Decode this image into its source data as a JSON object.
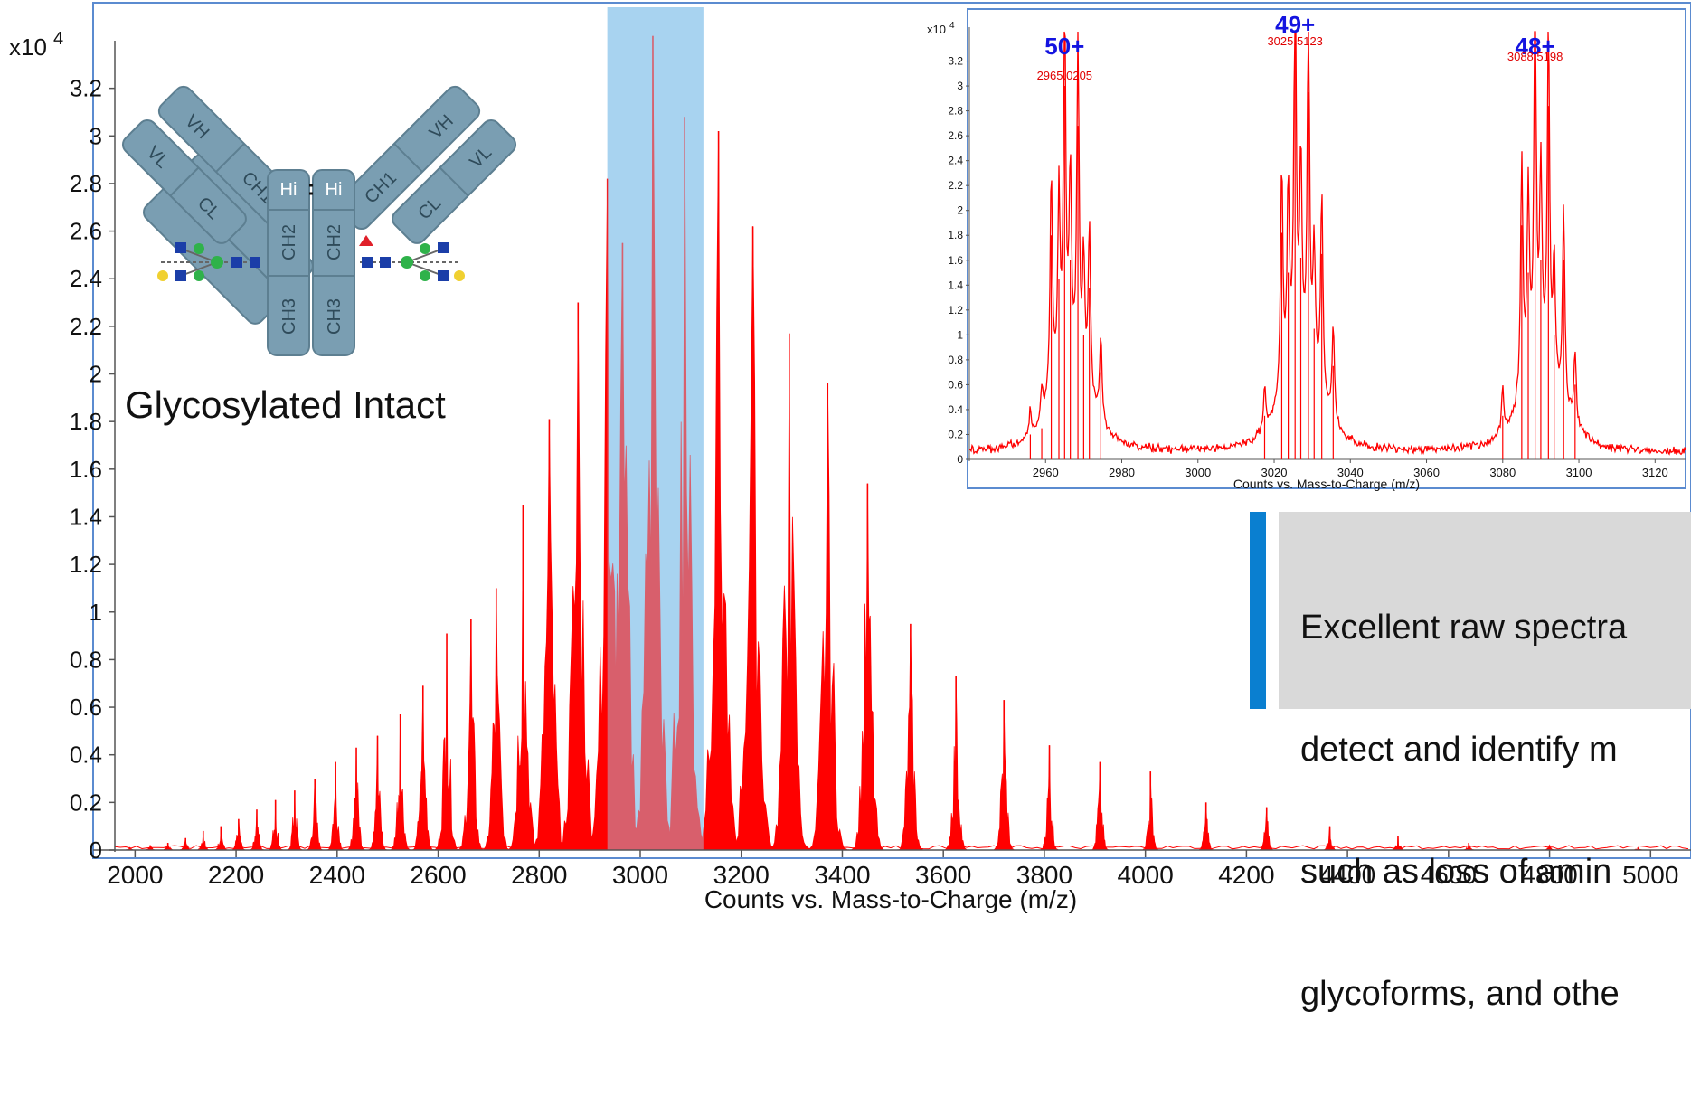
{
  "main_chart": {
    "type": "mass-spectrum",
    "xlabel": "Counts vs. Mass-to-Charge (m/z)",
    "y_multiplier": "x10",
    "y_exponent": "4",
    "x_ticks": [
      "2000",
      "2200",
      "2400",
      "2600",
      "2800",
      "3000",
      "3200",
      "3400",
      "3600",
      "3800",
      "4000",
      "4200",
      "4400",
      "4600",
      "4800",
      "5000"
    ],
    "y_ticks": [
      "0",
      "0.2",
      "0.4",
      "0.6",
      "0.8",
      "1",
      "1.2",
      "1.4",
      "1.6",
      "1.8",
      "2",
      "2.2",
      "2.4",
      "2.6",
      "2.8",
      "3",
      "3.2"
    ],
    "xlim": [
      1960,
      5080
    ],
    "ylim": [
      0,
      3.4
    ],
    "highlight_range": [
      2935,
      3125
    ],
    "series_color": "#ff0000",
    "highlight_color": "#a8d3f0",
    "peaks": [
      {
        "x": 1990,
        "y": 0.01
      },
      {
        "x": 2030,
        "y": 0.02
      },
      {
        "x": 2065,
        "y": 0.03
      },
      {
        "x": 2100,
        "y": 0.05
      },
      {
        "x": 2135,
        "y": 0.08
      },
      {
        "x": 2170,
        "y": 0.1
      },
      {
        "x": 2205,
        "y": 0.13
      },
      {
        "x": 2241,
        "y": 0.17
      },
      {
        "x": 2278,
        "y": 0.21
      },
      {
        "x": 2316,
        "y": 0.25
      },
      {
        "x": 2356,
        "y": 0.3
      },
      {
        "x": 2397,
        "y": 0.37
      },
      {
        "x": 2438,
        "y": 0.43
      },
      {
        "x": 2480,
        "y": 0.48
      },
      {
        "x": 2525,
        "y": 0.57
      },
      {
        "x": 2570,
        "y": 0.69
      },
      {
        "x": 2617,
        "y": 0.91
      },
      {
        "x": 2665,
        "y": 0.97
      },
      {
        "x": 2715,
        "y": 1.1
      },
      {
        "x": 2768,
        "y": 1.45
      },
      {
        "x": 2820,
        "y": 1.81
      },
      {
        "x": 2877,
        "y": 2.3
      },
      {
        "x": 2935,
        "y": 2.82
      },
      {
        "x": 2965,
        "y": 2.55
      },
      {
        "x": 3025,
        "y": 3.42
      },
      {
        "x": 3088,
        "y": 3.08
      },
      {
        "x": 3155,
        "y": 3.02
      },
      {
        "x": 3223,
        "y": 2.62
      },
      {
        "x": 3295,
        "y": 2.17
      },
      {
        "x": 3371,
        "y": 1.96
      },
      {
        "x": 3450,
        "y": 1.54
      },
      {
        "x": 3535,
        "y": 0.95
      },
      {
        "x": 3625,
        "y": 0.73
      },
      {
        "x": 3720,
        "y": 0.63
      },
      {
        "x": 3810,
        "y": 0.44
      },
      {
        "x": 3910,
        "y": 0.37
      },
      {
        "x": 4010,
        "y": 0.33
      },
      {
        "x": 4120,
        "y": 0.2
      },
      {
        "x": 4240,
        "y": 0.18
      },
      {
        "x": 4365,
        "y": 0.1
      },
      {
        "x": 4500,
        "y": 0.06
      },
      {
        "x": 4640,
        "y": 0.03
      },
      {
        "x": 4800,
        "y": 0.02
      },
      {
        "x": 4975,
        "y": 0.01
      }
    ]
  },
  "antibody": {
    "caption": "Glycosylated Intact",
    "labels": {
      "vh": "VH",
      "vl": "VL",
      "ch1": "CH1",
      "cl": "CL",
      "hinge": "Hi",
      "ch2": "CH2",
      "ch3": "CH3"
    },
    "color": "#7a9eb2"
  },
  "inset_chart": {
    "type": "mass-spectrum",
    "xlabel": "Counts vs. Mass-to-Charge (m/z)",
    "y_multiplier": "x10",
    "y_exponent": "4",
    "x_ticks": [
      "2960",
      "2980",
      "3000",
      "3020",
      "3040",
      "3060",
      "3080",
      "3100",
      "3120"
    ],
    "y_ticks": [
      "0",
      "0.2",
      "0.4",
      "0.6",
      "0.8",
      "1",
      "1.2",
      "1.4",
      "1.6",
      "1.8",
      "2",
      "2.2",
      "2.4",
      "2.6",
      "2.8",
      "3",
      "3.2"
    ],
    "xlim": [
      2940,
      3128
    ],
    "ylim": [
      0,
      3.4
    ],
    "charge_states": [
      {
        "label": "50+",
        "mz_label": "2965.0205",
        "x": 2965
      },
      {
        "label": "49+",
        "mz_label": "3025.5123",
        "x": 3025.5
      },
      {
        "label": "48+",
        "mz_label": "3088.5198",
        "x": 3088.5
      }
    ],
    "peaks": [
      {
        "x": 2956,
        "y": 0.2
      },
      {
        "x": 2959,
        "y": 0.25
      },
      {
        "x": 2961.5,
        "y": 1.8
      },
      {
        "x": 2963.5,
        "y": 1.45
      },
      {
        "x": 2965,
        "y": 3.0
      },
      {
        "x": 2966.5,
        "y": 1.6
      },
      {
        "x": 2968.5,
        "y": 2.68
      },
      {
        "x": 2970,
        "y": 1.0
      },
      {
        "x": 2971.5,
        "y": 1.38
      },
      {
        "x": 2974.5,
        "y": 0.7
      },
      {
        "x": 3017.5,
        "y": 0.35
      },
      {
        "x": 3022,
        "y": 1.82
      },
      {
        "x": 3023.7,
        "y": 1.5
      },
      {
        "x": 3025.5,
        "y": 3.35
      },
      {
        "x": 3027,
        "y": 1.62
      },
      {
        "x": 3029,
        "y": 2.95
      },
      {
        "x": 3030.5,
        "y": 1.05
      },
      {
        "x": 3032.5,
        "y": 1.65
      },
      {
        "x": 3035.5,
        "y": 0.75
      },
      {
        "x": 3080,
        "y": 0.35
      },
      {
        "x": 3085,
        "y": 1.88
      },
      {
        "x": 3086.7,
        "y": 1.5
      },
      {
        "x": 3088.5,
        "y": 3.12
      },
      {
        "x": 3090,
        "y": 1.6
      },
      {
        "x": 3092,
        "y": 2.84
      },
      {
        "x": 3093.5,
        "y": 1.0
      },
      {
        "x": 3096,
        "y": 1.6
      },
      {
        "x": 3099,
        "y": 0.6
      }
    ]
  },
  "callout": {
    "lines": [
      "Excellent raw spectra",
      "detect and identify m",
      "such as loss of amin",
      "glycoforms, and othe"
    ]
  }
}
